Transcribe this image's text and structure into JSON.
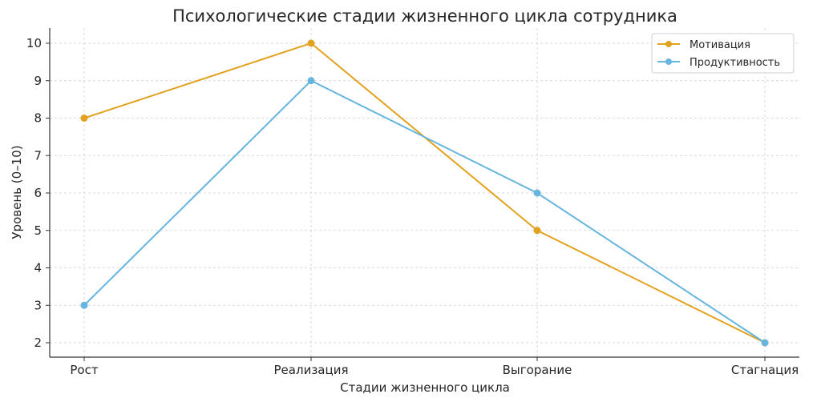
{
  "chart_data": {
    "type": "line",
    "title": "Психологические стадии жизненного цикла сотрудника",
    "xlabel": "Стадии жизненного цикла",
    "ylabel": "Уровень (0–10)",
    "categories": [
      "Рост",
      "Реализация",
      "Выгорание",
      "Стагнация"
    ],
    "yticks": [
      "2",
      "3",
      "4",
      "5",
      "6",
      "7",
      "8",
      "9",
      "10"
    ],
    "ylim": [
      1.6,
      10.4
    ],
    "grid": true,
    "legend_position": "upper right",
    "series": [
      {
        "name": "Мотивация",
        "values": [
          8,
          10,
          5,
          2
        ],
        "color": "#E2A21F"
      },
      {
        "name": "Продуктивность",
        "values": [
          3,
          9,
          6,
          2
        ],
        "color": "#66B5DE"
      }
    ]
  }
}
